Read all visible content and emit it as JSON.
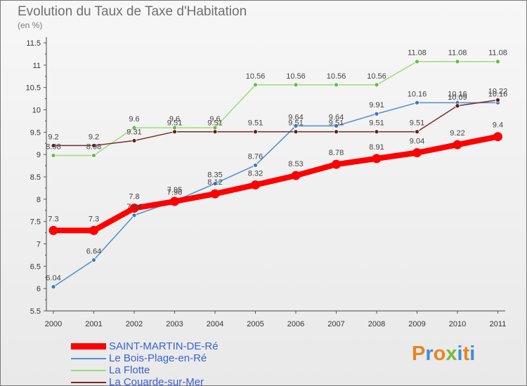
{
  "title": "Evolution du Taux de Taxe d'Habitation",
  "unit": "(en %)",
  "brand": {
    "text": "Proxiti",
    "colors": [
      "#e8851f",
      "#3d8ed6",
      "#e8851f",
      "#7ab83a",
      "#3d8ed6",
      "#e8851f",
      "#3d8ed6"
    ]
  },
  "chart_data": {
    "type": "line",
    "title": "Evolution du Taux de Taxe d'Habitation",
    "subtitle": "(en %)",
    "xlabel": "",
    "ylabel": "",
    "x": [
      "2000",
      "2001",
      "2002",
      "2003",
      "2004",
      "2005",
      "2006",
      "2007",
      "2008",
      "2009",
      "2010",
      "2011"
    ],
    "ylim": [
      5.5,
      11.5
    ],
    "yticks": [
      5.5,
      6,
      6.5,
      7,
      7.5,
      8,
      8.5,
      9,
      9.5,
      10,
      10.5,
      11,
      11.5
    ],
    "grid": false,
    "legend_position": "bottom-left",
    "series": [
      {
        "name": "SAINT-MARTIN-DE-Ré",
        "color": "#ff0000",
        "values": [
          7.3,
          7.3,
          7.8,
          7.95,
          8.12,
          8.32,
          8.53,
          8.78,
          8.91,
          9.04,
          9.22,
          9.4
        ],
        "labels": [
          "7.3",
          "7.3",
          "7.8",
          "7.95",
          "8.12",
          "8.32",
          "8.53",
          "8.78",
          "8.91",
          "9.04",
          "9.22",
          "9.4"
        ]
      },
      {
        "name": "Le Bois-Plage-en-Ré",
        "color": "#4a90d0",
        "values": [
          6.04,
          6.64,
          7.64,
          7.96,
          8.35,
          8.76,
          9.64,
          9.64,
          9.91,
          10.16,
          10.16,
          10.16
        ],
        "labels": [
          "6.04",
          "6.64",
          "7.64",
          "7.96",
          "8.35",
          "8.76",
          "9.64",
          "9.64",
          "9.91",
          "10.16",
          "10.16",
          "10.16"
        ]
      },
      {
        "name": "La Flotte",
        "color": "#99dd77",
        "values": [
          8.98,
          8.98,
          9.6,
          9.6,
          9.6,
          10.56,
          10.56,
          10.56,
          10.56,
          11.08,
          11.08,
          11.08
        ],
        "labels": [
          "8.98",
          "8.98",
          "9.6",
          "9.6",
          "9.6",
          "10.56",
          "10.56",
          "10.56",
          "10.56",
          "11.08",
          "11.08",
          "11.08"
        ]
      },
      {
        "name": "La Couarde-sur-Mer",
        "color": "#7a2a2a",
        "values": [
          9.2,
          9.2,
          9.31,
          9.51,
          9.51,
          9.51,
          9.51,
          9.51,
          9.51,
          9.51,
          10.09,
          10.22
        ],
        "labels": [
          "9.2",
          "9.2",
          "9.31",
          "9.51",
          "9.51",
          "9.51",
          "9.51",
          "9.51",
          "9.51",
          "9.51",
          "10.09",
          "10.22"
        ]
      }
    ]
  },
  "legend": [
    {
      "label": "SAINT-MARTIN-DE-Ré",
      "color": "#ff0000",
      "thick": true
    },
    {
      "label": "Le Bois-Plage-en-Ré",
      "color": "#4a90d0",
      "thick": false
    },
    {
      "label": "La Flotte",
      "color": "#99dd77",
      "thick": false
    },
    {
      "label": "La Couarde-sur-Mer",
      "color": "#7a2a2a",
      "thick": false
    }
  ]
}
